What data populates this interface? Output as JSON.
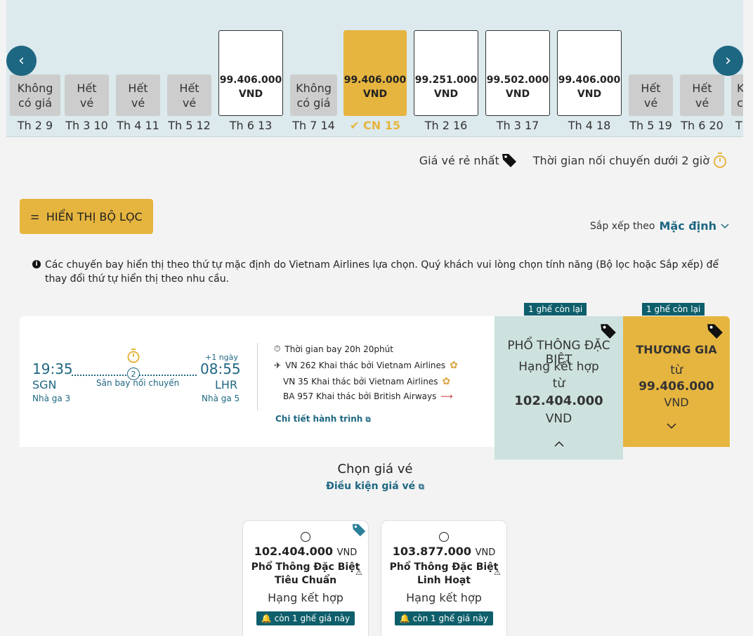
{
  "date_strip": {
    "prev_icon": "chevron-left-icon",
    "next_icon": "chevron-right-icon",
    "days": [
      {
        "label": "Th 2 9",
        "status": "Không có giá",
        "line1": "Không",
        "line2": "có giá"
      },
      {
        "label": "Th 3 10",
        "status": "Hết vé",
        "line1": "Hết",
        "line2": "vé"
      },
      {
        "label": "Th 4 11",
        "status": "Hết vé",
        "line1": "Hết",
        "line2": "vé"
      },
      {
        "label": "Th 5 12",
        "status": "Hết vé",
        "line1": "Hết",
        "line2": "vé"
      },
      {
        "label": "Th 6 13",
        "line1": "99.406.000",
        "line2": "VND"
      },
      {
        "label": "Th 7 14",
        "status": "Không có giá",
        "line1": "Không",
        "line2": "có giá"
      },
      {
        "label": "CN 15",
        "line1": "99.406.000",
        "line2": "VND",
        "selected": true
      },
      {
        "label": "Th 2 16",
        "line1": "99.251.000",
        "line2": "VND"
      },
      {
        "label": "Th 3 17",
        "line1": "99.502.000",
        "line2": "VND"
      },
      {
        "label": "Th 4 18",
        "line1": "99.406.000",
        "line2": "VND"
      },
      {
        "label": "Th 5 19",
        "line1": "Hết",
        "line2": "vé"
      },
      {
        "label": "Th 6 20",
        "line1": "Hết",
        "line2": "vé"
      },
      {
        "label": "Th",
        "line1": "K",
        "line2": "c"
      }
    ]
  },
  "legend": {
    "cheapest": "Giá vé rẻ nhất",
    "connection": "Thời gian nối chuyến dưới 2 giờ"
  },
  "filter_button": "HIỂN THỊ BỘ LỌC",
  "sort": {
    "label": "Sắp xếp theo",
    "value": "Mặc định"
  },
  "info_text": "Các chuyến bay hiển thị theo thứ tự mặc định do Vietnam Airlines lựa chọn. Quý khách vui lòng chọn tính năng (Bộ lọc hoặc Sắp xếp) để thay đổi thứ tự hiển thị theo nhu cầu.",
  "flight": {
    "depart_time": "19:35",
    "depart_code": "SGN",
    "depart_terminal": "Nhà ga 3",
    "arrive_time": "08:55",
    "arrive_code": "LHR",
    "arrive_terminal": "Nhà ga 5",
    "next_day": "+1 ngày",
    "stops": "2",
    "stop_label": "Sân bay nối chuyến",
    "duration": "Thời gian bay 20h 20phút",
    "segments": [
      "VN 262 Khai thác bởi Vietnam Airlines",
      "VN 35 Khai thác bởi Vietnam Airlines",
      "BA 957 Khai thác bởi British Airways"
    ],
    "details_link": "Chi tiết hành trình"
  },
  "fares": {
    "economy_premium": {
      "badge": "1 ghế còn lại",
      "title": "PHỔ THÔNG ĐẶC BIỆT",
      "subtitle": "Hạng kết hợp",
      "from": "từ",
      "price": "102.404.000",
      "currency": "VND"
    },
    "business": {
      "badge": "1 ghế còn lại",
      "title": "THƯƠNG GIA",
      "from": "từ",
      "price": "99.406.000",
      "currency": "VND"
    }
  },
  "choose_title": "Chọn giá vé",
  "conditions_link": "Điều kiện giá vé",
  "fare_options": [
    {
      "price": "102.404.000",
      "currency": "VND",
      "name1": "Phổ Thông Đặc Biệt",
      "name2": "Tiêu Chuẩn",
      "class": "Hạng kết hợp",
      "seat": "còn 1 ghế giá này"
    },
    {
      "price": "103.877.000",
      "currency": "VND",
      "name1": "Phổ Thông Đặc Biệt",
      "name2": "Linh Hoạt",
      "class": "Hạng kết hợp",
      "seat": "còn 1 ghế giá này"
    }
  ]
}
